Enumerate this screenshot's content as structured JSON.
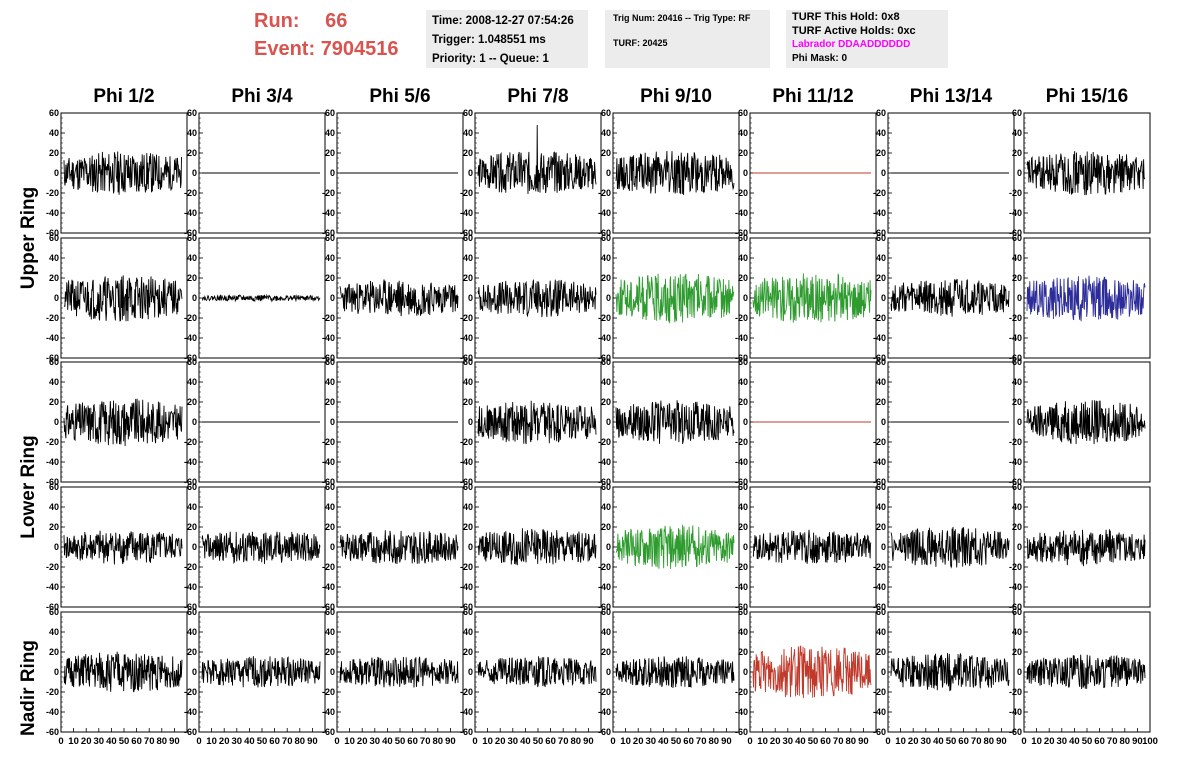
{
  "header": {
    "run_label": "Run:",
    "run_value": "66",
    "event_label": "Event:",
    "event_value": "7904516",
    "time_line": "Time: 2008-12-27 07:54:26",
    "trigger_line": "Trigger: 1.048551 ms",
    "priority_line": "Priority: 1 -- Queue: 1",
    "trig_num_line": "Trig Num: 20416 -- Trig Type: RF",
    "turf_line": "TURF: 20425",
    "turf_hold_line": "TURF This Hold: 0x8",
    "turf_active_line": "TURF Active Holds: 0xc",
    "labrador_line": "Labrador DDAADDDDDD",
    "phi_mask_line": "Phi Mask: 0",
    "labrador_color": "#ff00ff",
    "run_color": "#d9534f"
  },
  "chart_data": {
    "type": "line",
    "columns": [
      "Phi 1/2",
      "Phi 3/4",
      "Phi 5/6",
      "Phi 7/8",
      "Phi 9/10",
      "Phi 11/12",
      "Phi 13/14",
      "Phi 15/16"
    ],
    "rows": [
      "Upper Ring",
      "Upper Ring",
      "Lower Ring",
      "Lower Ring",
      "Nadir Ring"
    ],
    "row_groups": [
      {
        "label": "Upper Ring"
      },
      {
        "label": "Lower Ring"
      },
      {
        "label": "Nadir Ring"
      }
    ],
    "xlim": [
      0,
      100
    ],
    "ylim": [
      -60,
      60
    ],
    "y_ticks": [
      -60,
      -40,
      -20,
      0,
      20,
      40,
      60
    ],
    "x_tick_labels": [
      "0",
      "10",
      "20",
      "30",
      "40",
      "50",
      "60",
      "70",
      "80",
      "90",
      "100"
    ],
    "samples": 256,
    "panels": [
      [
        {
          "amp": 14,
          "color": "#000000",
          "seed": 11
        },
        {
          "amp": 0,
          "color": "#000000",
          "seed": 12
        },
        {
          "amp": 0,
          "color": "#000000",
          "seed": 13
        },
        {
          "amp": 14,
          "color": "#000000",
          "seed": 14,
          "spike": 50
        },
        {
          "amp": 14,
          "color": "#000000",
          "seed": 15
        },
        {
          "amp": 0,
          "color": "#c0392b",
          "seed": 16
        },
        {
          "amp": 0,
          "color": "#000000",
          "seed": 17
        },
        {
          "amp": 14,
          "color": "#000000",
          "seed": 18
        }
      ],
      [
        {
          "amp": 15,
          "color": "#000000",
          "seed": 21
        },
        {
          "amp": 2,
          "color": "#000000",
          "seed": 22
        },
        {
          "amp": 12,
          "color": "#000000",
          "seed": 23
        },
        {
          "amp": 12,
          "color": "#000000",
          "seed": 24
        },
        {
          "amp": 16,
          "color": "#2e9b2e",
          "seed": 25
        },
        {
          "amp": 16,
          "color": "#2e9b2e",
          "seed": 26
        },
        {
          "amp": 12,
          "color": "#000000",
          "seed": 27
        },
        {
          "amp": 15,
          "color": "#2c2c9a",
          "seed": 28
        }
      ],
      [
        {
          "amp": 15,
          "color": "#000000",
          "seed": 31
        },
        {
          "amp": 0,
          "color": "#000000",
          "seed": 32
        },
        {
          "amp": 0,
          "color": "#000000",
          "seed": 33
        },
        {
          "amp": 14,
          "color": "#000000",
          "seed": 34
        },
        {
          "amp": 14,
          "color": "#000000",
          "seed": 35
        },
        {
          "amp": 0,
          "color": "#c0392b",
          "seed": 36
        },
        {
          "amp": 0,
          "color": "#000000",
          "seed": 37
        },
        {
          "amp": 14,
          "color": "#000000",
          "seed": 38
        }
      ],
      [
        {
          "amp": 11,
          "color": "#000000",
          "seed": 41
        },
        {
          "amp": 11,
          "color": "#000000",
          "seed": 42
        },
        {
          "amp": 11,
          "color": "#000000",
          "seed": 43
        },
        {
          "amp": 12,
          "color": "#000000",
          "seed": 44
        },
        {
          "amp": 14,
          "color": "#2e9b2e",
          "seed": 45
        },
        {
          "amp": 11,
          "color": "#000000",
          "seed": 46
        },
        {
          "amp": 13,
          "color": "#000000",
          "seed": 47
        },
        {
          "amp": 12,
          "color": "#000000",
          "seed": 48
        }
      ],
      [
        {
          "amp": 13,
          "color": "#000000",
          "seed": 51
        },
        {
          "amp": 10,
          "color": "#000000",
          "seed": 52
        },
        {
          "amp": 10,
          "color": "#000000",
          "seed": 53
        },
        {
          "amp": 10,
          "color": "#000000",
          "seed": 54
        },
        {
          "amp": 10,
          "color": "#000000",
          "seed": 55
        },
        {
          "amp": 17,
          "color": "#c0392b",
          "seed": 56
        },
        {
          "amp": 12,
          "color": "#000000",
          "seed": 57
        },
        {
          "amp": 11,
          "color": "#000000",
          "seed": 58
        }
      ]
    ]
  }
}
